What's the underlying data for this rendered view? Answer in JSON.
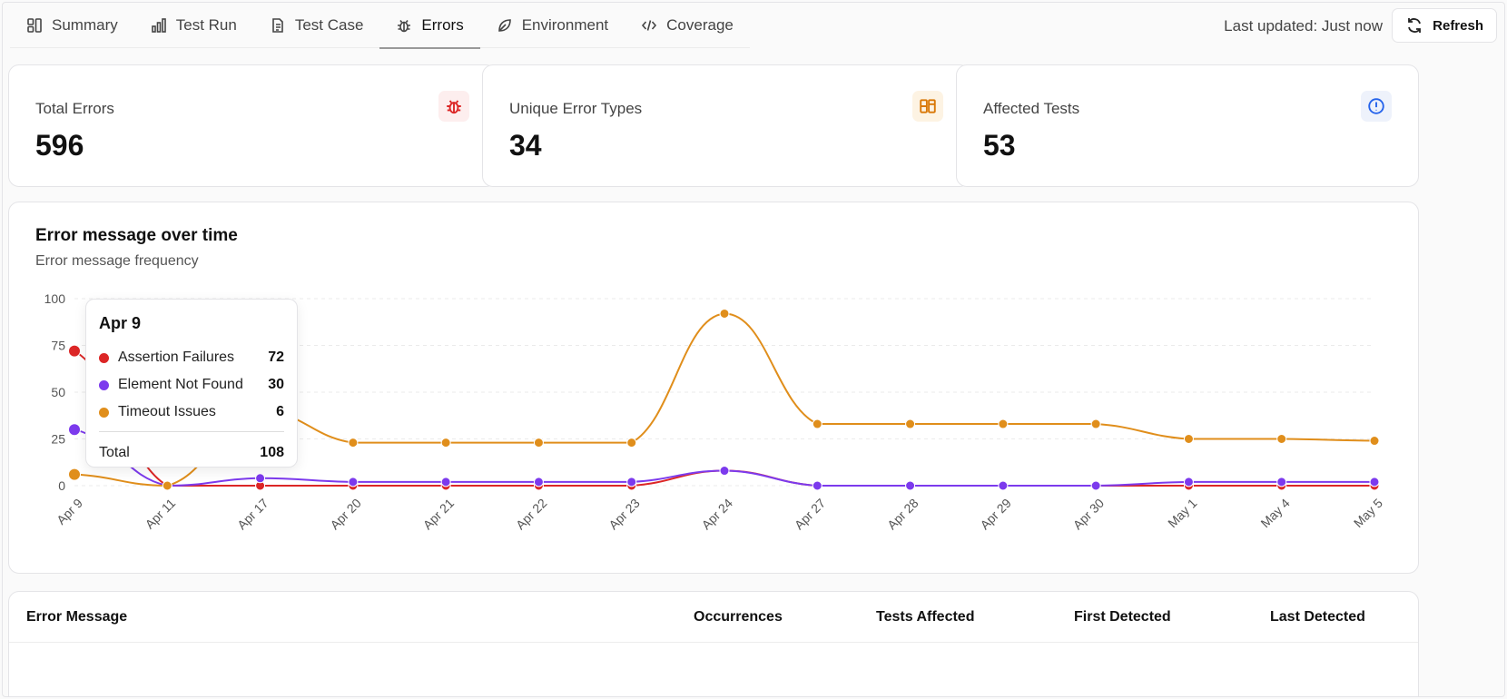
{
  "nav": {
    "tabs": [
      {
        "label": "Summary",
        "icon": "dashboard-icon"
      },
      {
        "label": "Test Run",
        "icon": "bar-chart-icon"
      },
      {
        "label": "Test Case",
        "icon": "document-icon"
      },
      {
        "label": "Errors",
        "icon": "bug-icon",
        "active": true
      },
      {
        "label": "Environment",
        "icon": "leaf-icon"
      },
      {
        "label": "Coverage",
        "icon": "code-icon"
      }
    ],
    "last_updated": "Last updated: Just now",
    "refresh_label": "Refresh"
  },
  "stats": [
    {
      "label": "Total Errors",
      "value": "596",
      "icon": "bug-icon",
      "color": "#dc2626",
      "bg": "#fdeeee"
    },
    {
      "label": "Unique Error Types",
      "value": "34",
      "icon": "columns-icon",
      "color": "#d97706",
      "bg": "#fdf3e3"
    },
    {
      "label": "Affected Tests",
      "value": "53",
      "icon": "alert-circle-icon",
      "color": "#2563eb",
      "bg": "#eef2fb"
    }
  ],
  "chart": {
    "title": "Error message over time",
    "subtitle": "Error message frequency"
  },
  "chart_data": {
    "type": "line",
    "x": [
      "Apr 9",
      "Apr 11",
      "Apr 17",
      "Apr 20",
      "Apr 21",
      "Apr 22",
      "Apr 23",
      "Apr 24",
      "Apr 27",
      "Apr 28",
      "Apr 29",
      "Apr 30",
      "May 1",
      "May 4",
      "May 5"
    ],
    "yticks": [
      0,
      25,
      50,
      75,
      100
    ],
    "ylim": [
      0,
      100
    ],
    "grid": true,
    "series": [
      {
        "name": "Assertion Failures",
        "color": "#dc2626",
        "values": [
          72,
          0,
          0,
          0,
          0,
          0,
          0,
          8,
          0,
          0,
          0,
          0,
          0,
          0,
          0
        ]
      },
      {
        "name": "Element Not Found",
        "color": "#7c3aed",
        "values": [
          30,
          0,
          4,
          2,
          2,
          2,
          2,
          8,
          0,
          0,
          0,
          0,
          2,
          2,
          2
        ]
      },
      {
        "name": "Timeout Issues",
        "color": "#e08e1b",
        "values": [
          6,
          0,
          40,
          23,
          23,
          23,
          23,
          92,
          33,
          33,
          33,
          33,
          25,
          25,
          24
        ]
      }
    ],
    "tooltip": {
      "title": "Apr 9",
      "rows": [
        {
          "name": "Assertion Failures",
          "value": "72",
          "color": "#dc2626"
        },
        {
          "name": "Element Not Found",
          "value": "30",
          "color": "#7c3aed"
        },
        {
          "name": "Timeout Issues",
          "value": "6",
          "color": "#e08e1b"
        }
      ],
      "total_label": "Total",
      "total_value": "108"
    }
  },
  "table": {
    "headers": [
      "Error Message",
      "Occurrences",
      "Tests Affected",
      "First Detected",
      "Last Detected"
    ]
  }
}
